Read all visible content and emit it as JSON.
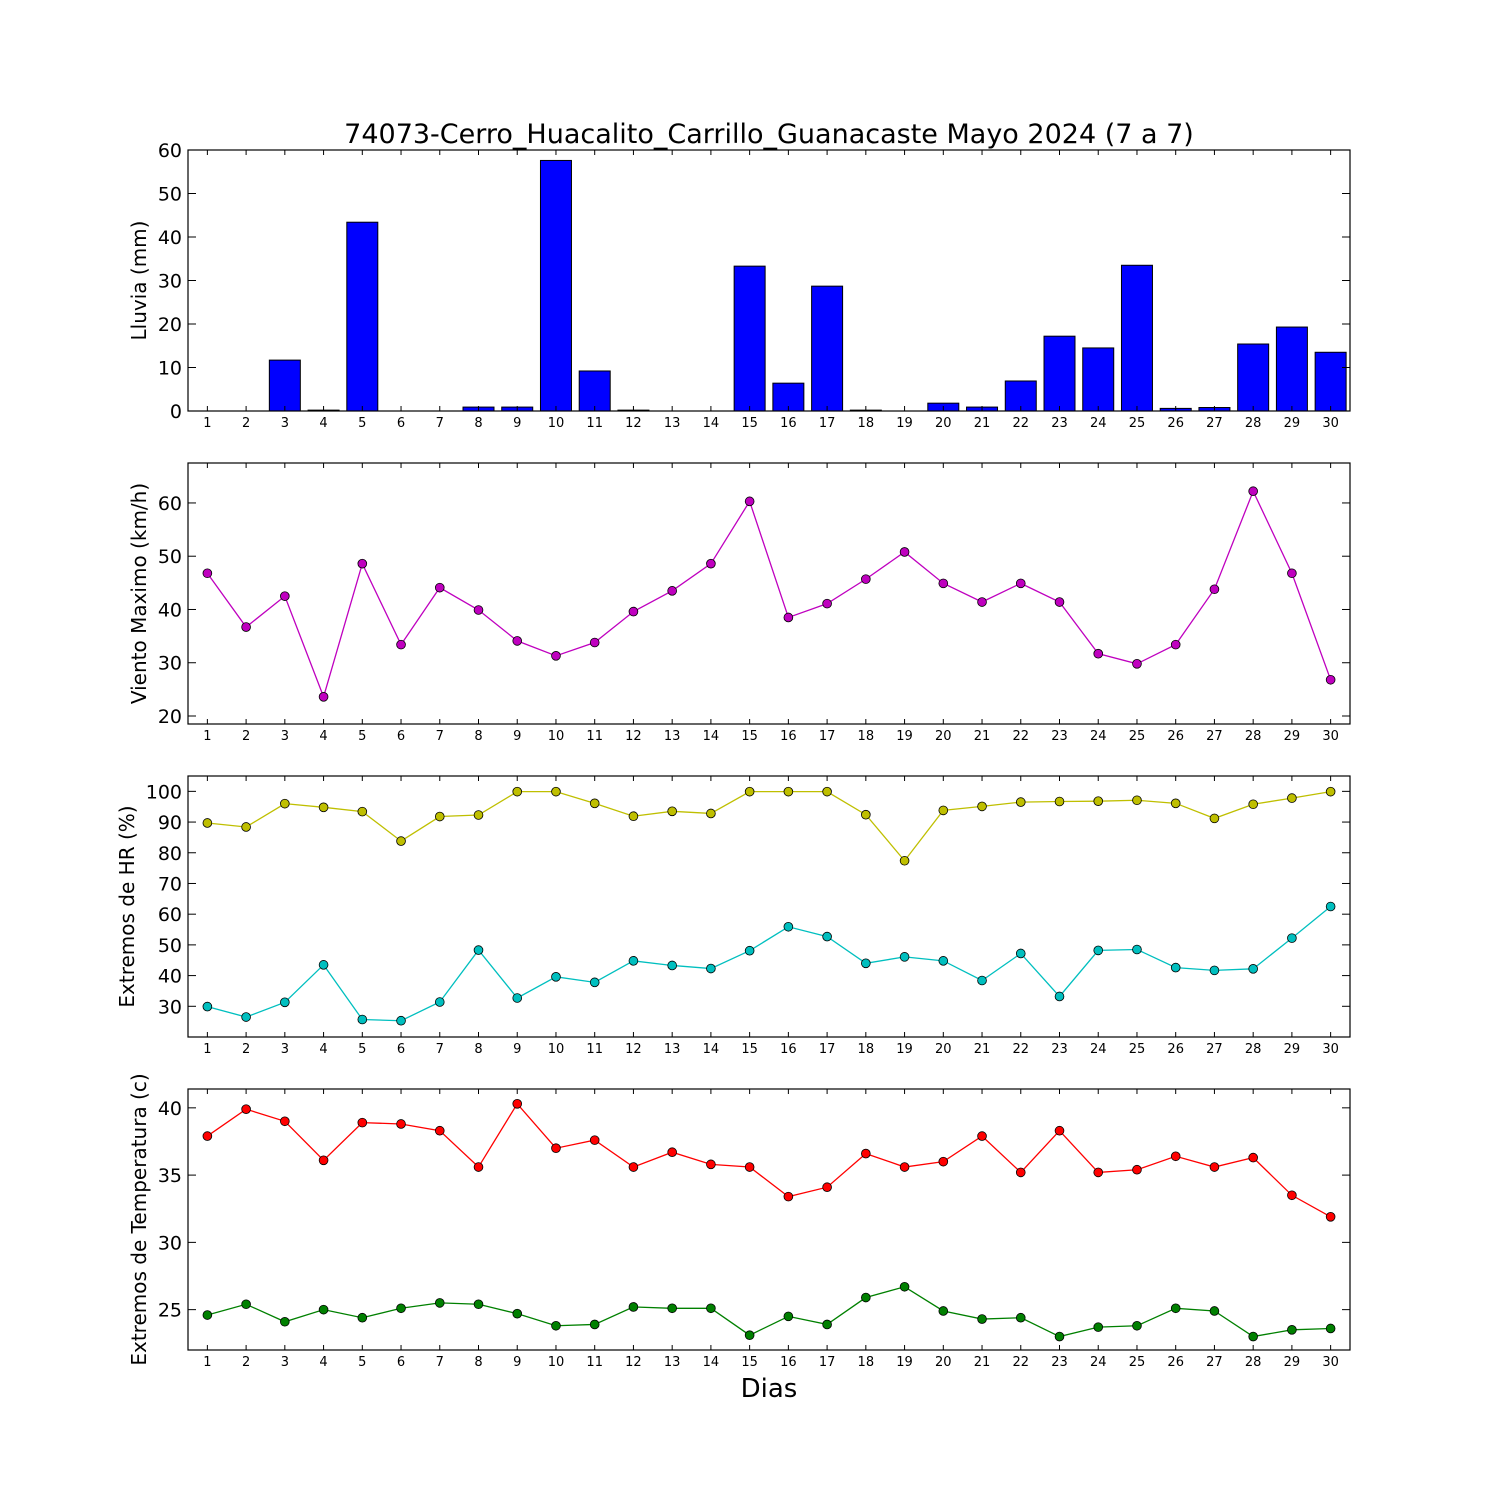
{
  "title": "74073-Cerro_Huacalito_Carrillo_Guanacaste Mayo 2024  (7 a 7)",
  "xlabel": "Dias",
  "chart_data": [
    {
      "type": "bar",
      "ylabel": "Lluvia (mm)",
      "ylim": [
        0,
        60
      ],
      "yticks": [
        0,
        10,
        20,
        30,
        40,
        50,
        60
      ],
      "color": "#0000ff",
      "categories": [
        1,
        2,
        3,
        4,
        5,
        6,
        7,
        8,
        9,
        10,
        11,
        12,
        13,
        14,
        15,
        16,
        17,
        18,
        19,
        20,
        21,
        22,
        23,
        24,
        25,
        26,
        27,
        28,
        29,
        30
      ],
      "series": [
        {
          "values": [
            0,
            0,
            11.7,
            0.2,
            43.4,
            0,
            0,
            0.9,
            0.9,
            57.6,
            9.2,
            0.2,
            0,
            0,
            33.3,
            6.4,
            28.7,
            0.2,
            0,
            1.8,
            0.9,
            6.9,
            17.2,
            14.5,
            33.5,
            0.6,
            0.8,
            15.4,
            19.3,
            13.5
          ]
        }
      ]
    },
    {
      "type": "line",
      "ylabel": "Viento Maximo (km/h)",
      "ylim": [
        18.5,
        67.5
      ],
      "yticks": [
        20,
        30,
        40,
        50,
        60
      ],
      "x": [
        1,
        2,
        3,
        4,
        5,
        6,
        7,
        8,
        9,
        10,
        11,
        12,
        13,
        14,
        15,
        16,
        17,
        18,
        19,
        20,
        21,
        22,
        23,
        24,
        25,
        26,
        27,
        28,
        29,
        30
      ],
      "series": [
        {
          "color": "#bf00bf",
          "values": [
            46.8,
            36.7,
            42.5,
            23.6,
            48.6,
            33.4,
            44.1,
            39.9,
            34.1,
            31.3,
            33.8,
            39.6,
            43.5,
            48.6,
            60.3,
            38.5,
            41.1,
            45.7,
            50.8,
            44.9,
            41.4,
            44.9,
            41.4,
            31.7,
            29.8,
            33.4,
            43.8,
            62.2,
            46.8,
            26.8
          ]
        }
      ]
    },
    {
      "type": "line",
      "ylabel": "Extremos de HR (%)",
      "ylim": [
        20,
        105
      ],
      "yticks": [
        30,
        40,
        50,
        60,
        70,
        80,
        90,
        100
      ],
      "x": [
        1,
        2,
        3,
        4,
        5,
        6,
        7,
        8,
        9,
        10,
        11,
        12,
        13,
        14,
        15,
        16,
        17,
        18,
        19,
        20,
        21,
        22,
        23,
        24,
        25,
        26,
        27,
        28,
        29,
        30
      ],
      "series": [
        {
          "color": "#bfbf00",
          "values": [
            89.7,
            88.4,
            96.0,
            94.8,
            93.4,
            83.8,
            91.8,
            92.3,
            99.9,
            99.9,
            96.1,
            91.9,
            93.5,
            92.8,
            99.9,
            99.9,
            99.9,
            92.4,
            77.4,
            93.8,
            95.1,
            96.5,
            96.7,
            96.8,
            97.1,
            96.1,
            91.2,
            95.8,
            97.8,
            99.9
          ]
        },
        {
          "color": "#00bfbf",
          "values": [
            29.9,
            26.5,
            31.3,
            43.5,
            25.7,
            25.3,
            31.4,
            48.3,
            32.7,
            39.6,
            37.8,
            44.8,
            43.3,
            42.3,
            48.1,
            55.9,
            52.7,
            44.0,
            46.1,
            44.8,
            38.4,
            47.2,
            33.2,
            48.2,
            48.5,
            42.6,
            41.7,
            42.2,
            52.2,
            62.5
          ]
        }
      ]
    },
    {
      "type": "line",
      "ylabel": "Extremos de Temperatura (c)",
      "ylim": [
        22,
        41.4
      ],
      "yticks": [
        25,
        30,
        35,
        40
      ],
      "x": [
        1,
        2,
        3,
        4,
        5,
        6,
        7,
        8,
        9,
        10,
        11,
        12,
        13,
        14,
        15,
        16,
        17,
        18,
        19,
        20,
        21,
        22,
        23,
        24,
        25,
        26,
        27,
        28,
        29,
        30
      ],
      "series": [
        {
          "color": "#ff0000",
          "values": [
            37.9,
            39.9,
            39.0,
            36.1,
            38.9,
            38.8,
            38.3,
            35.6,
            40.3,
            37.0,
            37.6,
            35.6,
            36.7,
            35.8,
            35.6,
            33.4,
            34.1,
            36.6,
            35.6,
            36.0,
            37.9,
            35.2,
            38.3,
            35.2,
            35.4,
            36.4,
            35.6,
            36.3,
            33.5,
            31.9
          ]
        },
        {
          "color": "#008000",
          "values": [
            24.6,
            25.4,
            24.1,
            25.0,
            24.4,
            25.1,
            25.5,
            25.4,
            24.7,
            23.8,
            23.9,
            25.2,
            25.1,
            25.1,
            23.1,
            24.5,
            23.9,
            25.9,
            26.7,
            24.9,
            24.3,
            24.4,
            23.0,
            23.7,
            23.8,
            25.1,
            24.9,
            23.0,
            23.5,
            23.6
          ]
        }
      ]
    }
  ]
}
